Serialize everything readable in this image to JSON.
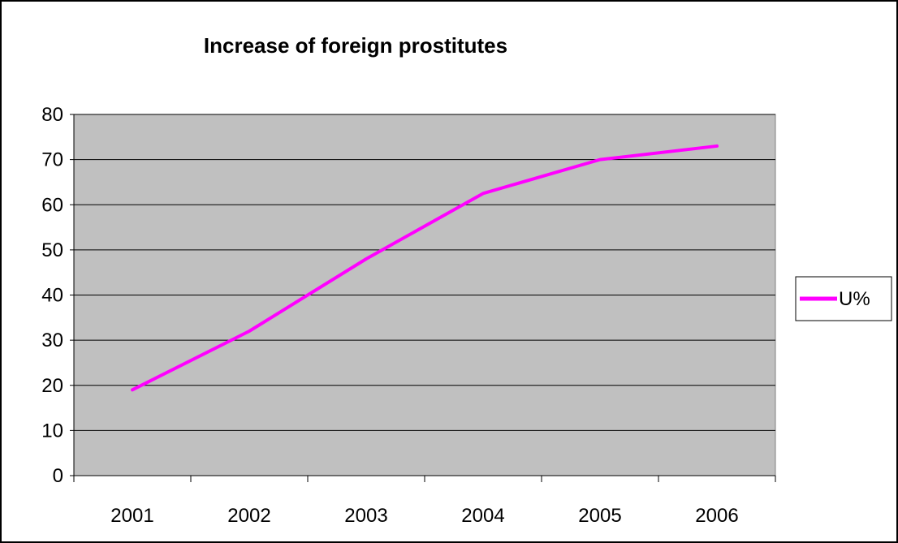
{
  "chart_data": {
    "type": "line",
    "title": "Increase of foreign prostitutes",
    "categories": [
      "2001",
      "2002",
      "2003",
      "2004",
      "2005",
      "2006"
    ],
    "series": [
      {
        "name": "U%",
        "values": [
          19,
          32,
          48,
          62.5,
          70,
          73
        ],
        "color": "#ff00ff"
      }
    ],
    "ylim": [
      0,
      80
    ],
    "yticks": [
      0,
      10,
      20,
      30,
      40,
      50,
      60,
      70,
      80
    ],
    "grid": true,
    "legend": "right",
    "plot_background": "#c0c0c0"
  }
}
